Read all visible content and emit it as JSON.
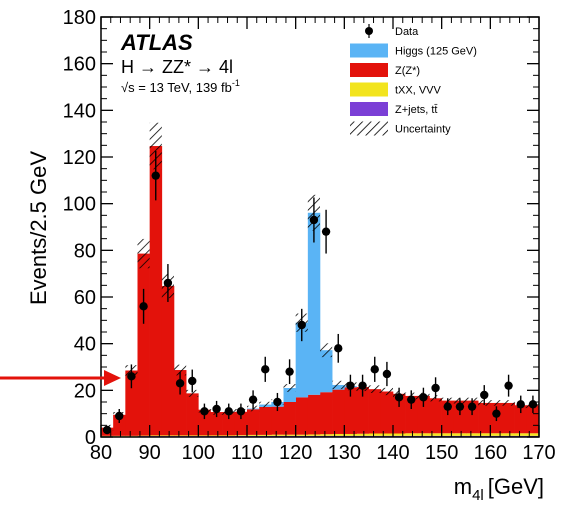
{
  "chart_data": {
    "type": "bar",
    "stacked": true,
    "xlabel": "m_4l [GeV]",
    "xlabel_main": "m",
    "xlabel_sub": "4l",
    "xlabel_unit": "[GeV]",
    "ylabel": "Events/2.5 GeV",
    "xlim": [
      80,
      170
    ],
    "ylim": [
      0,
      180
    ],
    "x_ticks": [
      80,
      90,
      100,
      110,
      120,
      130,
      140,
      150,
      160,
      170
    ],
    "y_ticks": [
      0,
      20,
      40,
      60,
      80,
      100,
      120,
      140,
      160,
      180
    ],
    "bin_width": 2.5,
    "bin_edges_start": 80,
    "series": [
      {
        "name": "Z+jets, tt̄",
        "color": "#7b3fd6",
        "values": [
          0.3,
          0.3,
          0.3,
          0.4,
          0.4,
          0.4,
          0.4,
          0.4,
          0.4,
          0.4,
          0.4,
          0.5,
          0.5,
          0.5,
          0.5,
          0.5,
          0.5,
          0.5,
          0.5,
          0.5,
          0.5,
          0.5,
          0.5,
          0.5,
          0.5,
          0.5,
          0.5,
          0.5,
          0.5,
          0.5,
          0.5,
          0.5,
          0.5,
          0.5,
          0.5,
          0.5
        ]
      },
      {
        "name": "tXX, VVV",
        "color": "#f2e41e",
        "values": [
          0.2,
          0.2,
          0.2,
          0.2,
          0.3,
          0.3,
          0.3,
          0.3,
          0.3,
          0.3,
          0.3,
          0.3,
          0.4,
          0.4,
          0.5,
          0.5,
          0.5,
          0.6,
          0.7,
          0.8,
          0.8,
          0.9,
          1.0,
          1.0,
          1.0,
          1.1,
          1.1,
          1.1,
          1.1,
          1.1,
          1.1,
          1.1,
          1.1,
          1.1,
          1.1,
          1.1
        ]
      },
      {
        "name": "Z(Z*)",
        "color": "#e3120b",
        "values": [
          3.5,
          9,
          28,
          78,
          124,
          64,
          28,
          18,
          11,
          10,
          10,
          10,
          11,
          12,
          12,
          14,
          16,
          17,
          18,
          19,
          20,
          20,
          19,
          18,
          17,
          16,
          16,
          15,
          14,
          14,
          14,
          13,
          13,
          13,
          12,
          12
        ]
      },
      {
        "name": "Higgs (125 GeV)",
        "color": "#5ab4f5",
        "values": [
          0,
          0,
          0,
          0,
          0,
          0,
          0,
          0,
          0,
          0,
          0,
          0,
          0.3,
          1,
          2,
          6,
          32,
          78,
          18,
          2,
          0.5,
          0,
          0,
          0,
          0,
          0,
          0,
          0,
          0,
          0,
          0,
          0,
          0,
          0,
          0,
          0
        ]
      }
    ],
    "uncertainty_name": "Uncertainty",
    "uncertainty_rel": 0.08,
    "data": {
      "name": "Data",
      "x": [
        81.25,
        83.75,
        86.25,
        88.75,
        91.25,
        93.75,
        96.25,
        98.75,
        101.25,
        103.75,
        106.25,
        108.75,
        111.25,
        113.75,
        116.25,
        118.75,
        121.25,
        123.75,
        126.25,
        128.75,
        131.25,
        133.75,
        136.25,
        138.75,
        141.25,
        143.75,
        146.25,
        148.75,
        151.25,
        153.75,
        156.25,
        158.75,
        161.25,
        163.75,
        166.25,
        168.75
      ],
      "y": [
        3,
        9,
        26,
        56,
        112,
        66,
        23,
        24,
        11,
        12,
        11,
        11,
        16,
        29,
        15,
        28,
        48,
        93,
        88,
        38,
        22,
        22,
        29,
        27,
        17,
        16,
        17,
        21,
        13,
        13,
        13,
        18,
        10,
        22,
        14,
        14
      ]
    }
  },
  "labels": {
    "atlas": "ATLAS",
    "process": "H → ZZ* → 4l",
    "energy_main": "√s = 13 TeV, 139 fb",
    "energy_sup": "-1"
  },
  "legend": [
    {
      "label": "Data",
      "kind": "marker"
    },
    {
      "label": "Higgs (125 GeV)",
      "kind": "fill",
      "color": "#5ab4f5"
    },
    {
      "label": "Z(Z*)",
      "kind": "fill",
      "color": "#e3120b"
    },
    {
      "label": "tXX, VVV",
      "kind": "fill",
      "color": "#f2e41e"
    },
    {
      "label": "Z+jets, tt̄",
      "kind": "fill",
      "color": "#7b3fd6"
    },
    {
      "label": "Uncertainty",
      "kind": "hatch"
    }
  ],
  "annotation_arrow_color": "#e3120b"
}
